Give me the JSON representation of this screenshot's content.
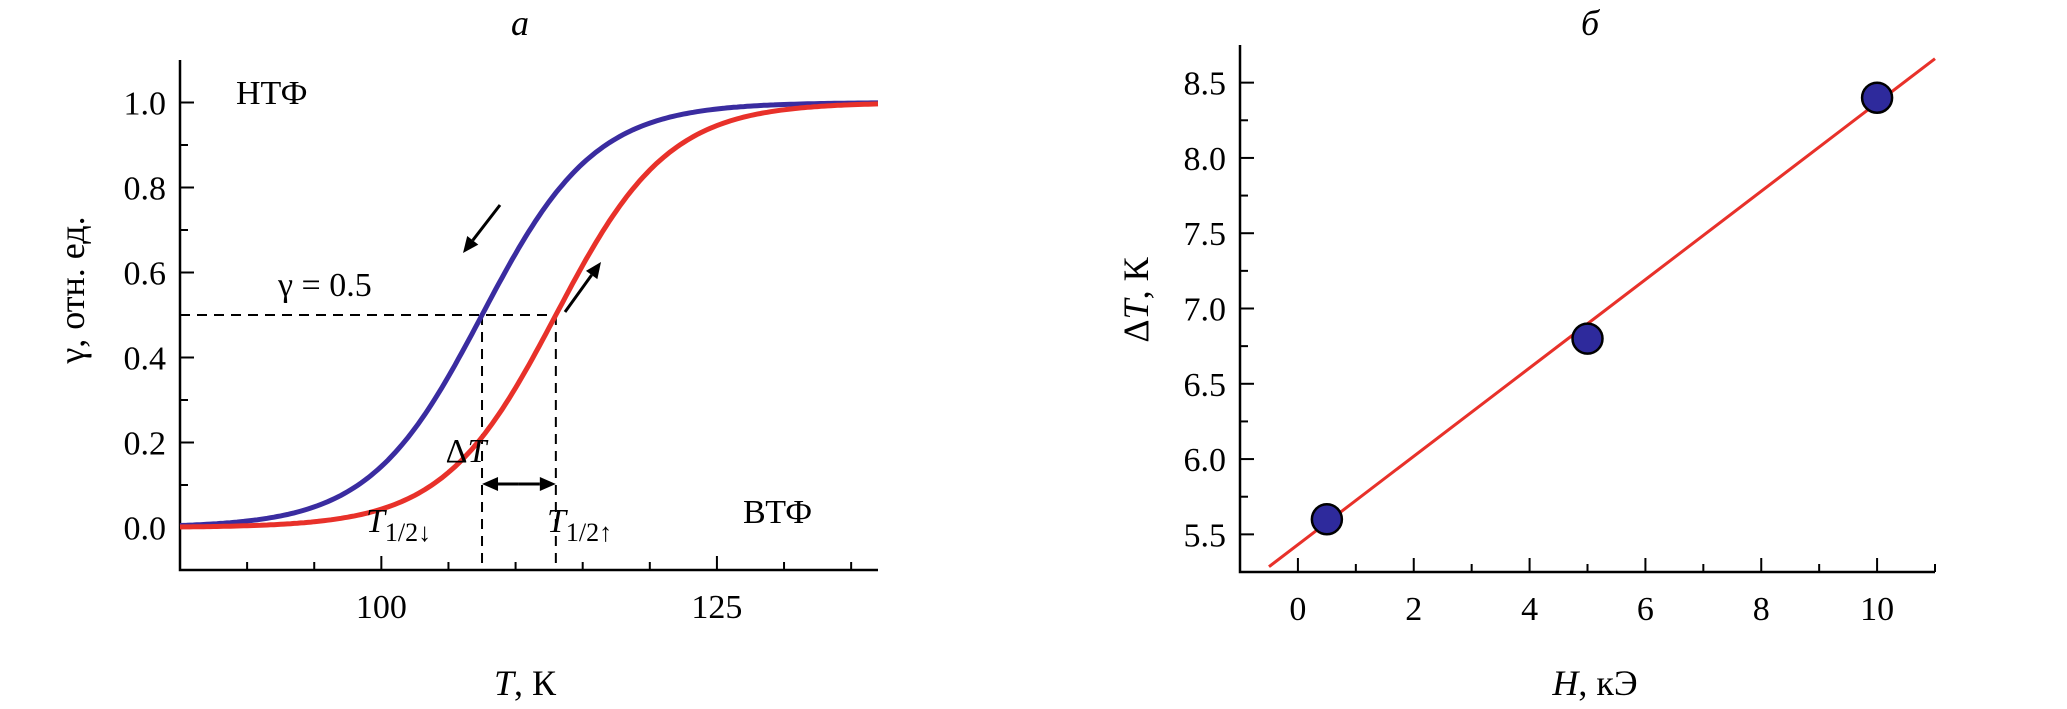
{
  "chart_data": [
    {
      "type": "line",
      "panel_label": "а",
      "xlabel_italic": "T",
      "xlabel_rest": ", К",
      "ylabel": "γ, отн. ед.",
      "xlim": [
        85,
        137
      ],
      "ylim": [
        -0.1,
        1.1
      ],
      "x_ticks": [
        100,
        125
      ],
      "y_ticks": [
        0.0,
        0.2,
        0.4,
        0.6,
        0.8,
        1.0
      ],
      "y_tick_labels": [
        "0.0",
        "0.2",
        "0.4",
        "0.6",
        "0.8",
        "1.0"
      ],
      "series": [
        {
          "color": "#3a2ca0",
          "midpoint": 107.5,
          "width": 4.2,
          "direction": "cooling"
        },
        {
          "color": "#e8312a",
          "midpoint": 113.0,
          "width": 4.2,
          "direction": "heating"
        }
      ],
      "gamma_level": 0.5,
      "annotations": {
        "ltf": "НТФ",
        "htf": "ВТФ",
        "gamma_eq": "γ = 0.5",
        "delta_t_symbol": "Δ",
        "delta_t_var": "T",
        "t_down_main": "T",
        "t_down_sub": "1/2↓",
        "t_up_main": "T",
        "t_up_sub": "1/2↑"
      }
    },
    {
      "type": "scatter",
      "panel_label": "б",
      "xlabel_italic": "H",
      "xlabel_rest": ", кЭ",
      "ylabel_prefix": "Δ",
      "ylabel_italic": "T",
      "ylabel_rest": ", К",
      "xlim": [
        -1,
        11
      ],
      "ylim": [
        5.25,
        8.75
      ],
      "x_ticks": [
        0,
        2,
        4,
        6,
        8,
        10
      ],
      "y_ticks": [
        5.5,
        6.0,
        6.5,
        7.0,
        7.5,
        8.0,
        8.5
      ],
      "y_tick_labels": [
        "5.5",
        "6.0",
        "6.5",
        "7.0",
        "7.5",
        "8.0",
        "8.5"
      ],
      "points": [
        {
          "x": 0.5,
          "y": 5.6
        },
        {
          "x": 5.0,
          "y": 6.8
        },
        {
          "x": 10.0,
          "y": 8.4
        }
      ],
      "fit": {
        "slope": 0.2934,
        "intercept": 5.4317,
        "x_range": [
          -0.5,
          11.0
        ],
        "color": "#e8312a"
      },
      "marker_color": "#2e2a9c"
    }
  ]
}
